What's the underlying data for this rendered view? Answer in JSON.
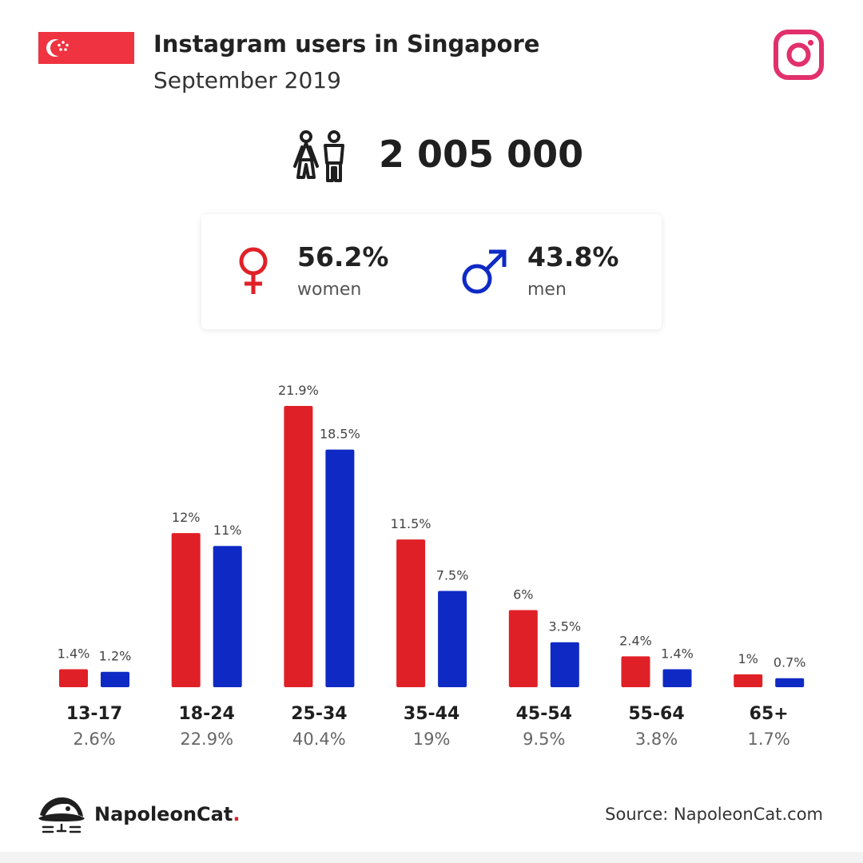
{
  "header": {
    "title": "Instagram users in Singapore",
    "subtitle": "September 2019",
    "flag_icon": "singapore-flag-icon",
    "platform_icon": "instagram-icon"
  },
  "summary": {
    "total_users": "2 005 000",
    "icon": "people-icon"
  },
  "gender": {
    "women": {
      "percent": "56.2%",
      "label": "women",
      "icon": "female-symbol-icon",
      "color": "#e02027"
    },
    "men": {
      "percent": "43.8%",
      "label": "men",
      "icon": "male-symbol-icon",
      "color": "#0f2ac4"
    }
  },
  "chart_data": {
    "type": "bar",
    "categories": [
      "13-17",
      "18-24",
      "25-34",
      "35-44",
      "45-54",
      "55-64",
      "65+"
    ],
    "totals": [
      "2.6%",
      "22.9%",
      "40.4%",
      "19%",
      "9.5%",
      "3.8%",
      "1.7%"
    ],
    "series": [
      {
        "color": "#e02027",
        "values": [
          1.4,
          12,
          21.9,
          11.5,
          6,
          2.4,
          1
        ],
        "labels": [
          "1.4%",
          "12%",
          "21.9%",
          "11.5%",
          "6%",
          "2.4%",
          "1%"
        ]
      },
      {
        "color": "#0f2ac4",
        "values": [
          1.2,
          11,
          18.5,
          7.5,
          3.5,
          1.4,
          0.7
        ],
        "labels": [
          "1.2%",
          "11%",
          "18.5%",
          "7.5%",
          "3.5%",
          "1.4%",
          "0.7%"
        ]
      }
    ],
    "ylim": [
      0,
      21.9
    ],
    "grid": false
  },
  "footer": {
    "brand_name": "NapoleonCat",
    "brand_dot": ".",
    "logo_icon": "napoleoncat-logo-icon",
    "source": "Source: NapoleonCat.com"
  }
}
